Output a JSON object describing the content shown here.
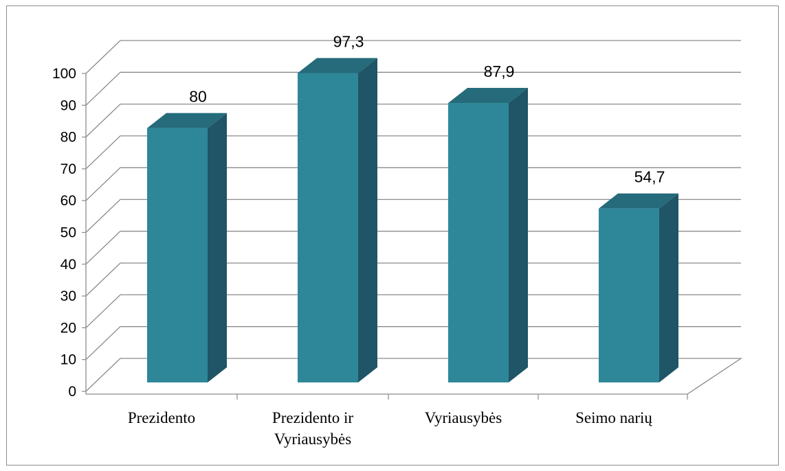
{
  "chart_data": {
    "type": "bar",
    "title": "",
    "xlabel": "",
    "ylabel": "",
    "categories": [
      [
        "Prezidento"
      ],
      [
        "Prezidento ir",
        "Vyriausybės"
      ],
      [
        "Vyriausybės"
      ],
      [
        "Seimo narių"
      ]
    ],
    "values": [
      80,
      97.3,
      87.9,
      54.7
    ],
    "value_labels": [
      "80",
      "97,3",
      "87,9",
      "54,7"
    ],
    "ylim": [
      0,
      100
    ],
    "yticks": [
      0,
      10,
      20,
      30,
      40,
      50,
      60,
      70,
      80,
      90,
      100
    ],
    "grid": true,
    "legend": "none",
    "colors": {
      "bar_front": "#2e8799",
      "bar_side": "#1f5566",
      "bar_top": "#256b7b",
      "gridline": "#8a8a8a",
      "frame": "#8c8c8c"
    }
  }
}
